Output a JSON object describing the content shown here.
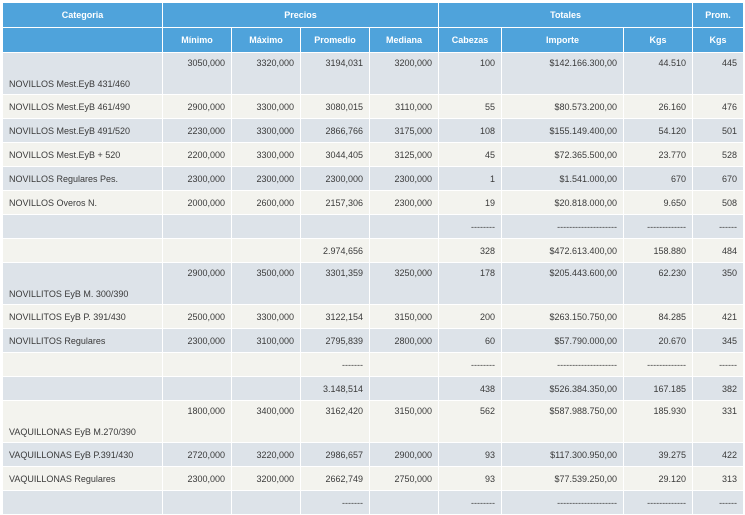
{
  "header": {
    "categoria": "Categoria",
    "precios": "Precios",
    "totales": "Totales",
    "prom": "Prom.",
    "minimo": "Mínimo",
    "maximo": "Máximo",
    "promedio": "Promedio",
    "mediana": "Mediana",
    "cabezas": "Cabezas",
    "importe": "Importe",
    "kgs": "Kgs",
    "prom_kgs": "Kgs"
  },
  "rows": [
    {
      "cat": "NOVILLOS Mest.EyB 431/460",
      "min": "3050,000",
      "max": "3320,000",
      "prom": "3194,031",
      "med": "3200,000",
      "cab": "100",
      "imp": "$142.166.300,00",
      "kgs": "44.510",
      "pkgs": "445"
    },
    {
      "cat": "NOVILLOS Mest.EyB 461/490",
      "min": "2900,000",
      "max": "3300,000",
      "prom": "3080,015",
      "med": "3110,000",
      "cab": "55",
      "imp": "$80.573.200,00",
      "kgs": "26.160",
      "pkgs": "476"
    },
    {
      "cat": "NOVILLOS Mest.EyB 491/520",
      "min": "2230,000",
      "max": "3300,000",
      "prom": "2866,766",
      "med": "3175,000",
      "cab": "108",
      "imp": "$155.149.400,00",
      "kgs": "54.120",
      "pkgs": "501"
    },
    {
      "cat": "NOVILLOS Mest.EyB + 520",
      "min": "2200,000",
      "max": "3300,000",
      "prom": "3044,405",
      "med": "3125,000",
      "cab": "45",
      "imp": "$72.365.500,00",
      "kgs": "23.770",
      "pkgs": "528"
    },
    {
      "cat": "NOVILLOS Regulares Pes.",
      "min": "2300,000",
      "max": "2300,000",
      "prom": "2300,000",
      "med": "2300,000",
      "cab": "1",
      "imp": "$1.541.000,00",
      "kgs": "670",
      "pkgs": "670"
    },
    {
      "cat": "NOVILLOS Overos N.",
      "min": "2000,000",
      "max": "2600,000",
      "prom": "2157,306",
      "med": "2300,000",
      "cab": "19",
      "imp": "$20.818.000,00",
      "kgs": "9.650",
      "pkgs": "508"
    },
    {
      "cat": "",
      "min": "",
      "max": "",
      "prom": "",
      "med": "",
      "cab": "--------",
      "imp": "--------------------",
      "kgs": "-------------",
      "pkgs": "------"
    },
    {
      "cat": "",
      "min": "",
      "max": "",
      "prom": "2.974,656",
      "med": "",
      "cab": "328",
      "imp": "$472.613.400,00",
      "kgs": "158.880",
      "pkgs": "484"
    },
    {
      "cat": "NOVILLITOS EyB M. 300/390",
      "min": "2900,000",
      "max": "3500,000",
      "prom": "3301,359",
      "med": "3250,000",
      "cab": "178",
      "imp": "$205.443.600,00",
      "kgs": "62.230",
      "pkgs": "350"
    },
    {
      "cat": "NOVILLITOS EyB P. 391/430",
      "min": "2500,000",
      "max": "3300,000",
      "prom": "3122,154",
      "med": "3150,000",
      "cab": "200",
      "imp": "$263.150.750,00",
      "kgs": "84.285",
      "pkgs": "421"
    },
    {
      "cat": "NOVILLITOS Regulares",
      "min": "2300,000",
      "max": "3100,000",
      "prom": "2795,839",
      "med": "2800,000",
      "cab": "60",
      "imp": "$57.790.000,00",
      "kgs": "20.670",
      "pkgs": "345"
    },
    {
      "cat": "",
      "min": "",
      "max": "",
      "prom": "-------",
      "med": "",
      "cab": "--------",
      "imp": "--------------------",
      "kgs": "-------------",
      "pkgs": "------"
    },
    {
      "cat": "",
      "min": "",
      "max": "",
      "prom": "3.148,514",
      "med": "",
      "cab": "438",
      "imp": "$526.384.350,00",
      "kgs": "167.185",
      "pkgs": "382"
    },
    {
      "cat": "VAQUILLONAS EyB M.270/390",
      "min": "1800,000",
      "max": "3400,000",
      "prom": "3162,420",
      "med": "3150,000",
      "cab": "562",
      "imp": "$587.988.750,00",
      "kgs": "185.930",
      "pkgs": "331"
    },
    {
      "cat": "VAQUILLONAS EyB P.391/430",
      "min": "2720,000",
      "max": "3220,000",
      "prom": "2986,657",
      "med": "2900,000",
      "cab": "93",
      "imp": "$117.300.950,00",
      "kgs": "39.275",
      "pkgs": "422"
    },
    {
      "cat": "VAQUILLONAS Regulares",
      "min": "2300,000",
      "max": "3200,000",
      "prom": "2662,749",
      "med": "2750,000",
      "cab": "93",
      "imp": "$77.539.250,00",
      "kgs": "29.120",
      "pkgs": "313"
    },
    {
      "cat": "",
      "min": "",
      "max": "",
      "prom": "-------",
      "med": "",
      "cab": "--------",
      "imp": "--------------------",
      "kgs": "-------------",
      "pkgs": "------"
    }
  ]
}
